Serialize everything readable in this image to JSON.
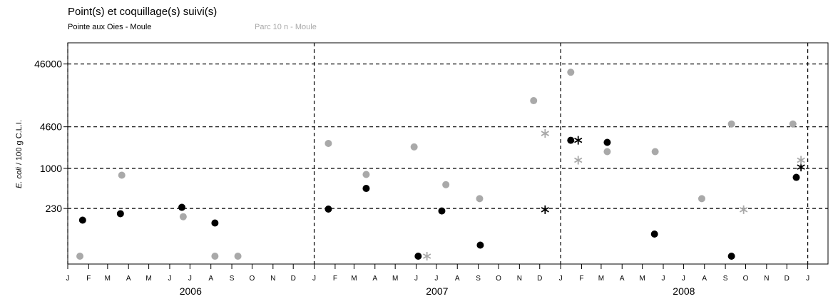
{
  "chart_data": {
    "type": "scatter",
    "title": "Point(s) et coquillage(s) suivi(s)",
    "ylabel": "E. coli / 100 g C.L.I.",
    "ylabel_italic": "E. coli",
    "ylabel_rest": " / 100 g C.L.I.",
    "y_scale": "log",
    "ylim": [
      30,
      100000
    ],
    "y_ticks": [
      230,
      1000,
      4600,
      46000
    ],
    "x_range": [
      "2006-01-01",
      "2009-01-31"
    ],
    "x_year_lines": [
      "2006-01-01",
      "2007-01-01",
      "2008-01-01",
      "2009-01-01"
    ],
    "month_labels": [
      "J",
      "F",
      "M",
      "A",
      "M",
      "J",
      "J",
      "A",
      "S",
      "O",
      "N",
      "D",
      "J",
      "F",
      "M",
      "A",
      "M",
      "J",
      "J",
      "A",
      "S",
      "O",
      "N",
      "D",
      "J",
      "F",
      "M",
      "A",
      "M",
      "J",
      "J",
      "A",
      "S",
      "O",
      "N",
      "D",
      "J"
    ],
    "year_labels": [
      "2006",
      "2007",
      "2008"
    ],
    "grid": "dashed at thresholds and year starts",
    "legend_placement": "top-left",
    "series": [
      {
        "name": "Pointe aux Oies - Moule",
        "color": "#000000",
        "points": [
          {
            "x": "2006-01-23",
            "y": 150
          },
          {
            "x": "2006-03-20",
            "y": 190
          },
          {
            "x": "2006-06-19",
            "y": 240
          },
          {
            "x": "2006-08-07",
            "y": 135
          },
          {
            "x": "2007-01-22",
            "y": 225
          },
          {
            "x": "2007-03-19",
            "y": 480
          },
          {
            "x": "2007-06-04",
            "y": 40
          },
          {
            "x": "2007-07-09",
            "y": 210
          },
          {
            "x": "2007-09-04",
            "y": 60
          },
          {
            "x": "2008-01-16",
            "y": 2800
          },
          {
            "x": "2008-03-10",
            "y": 2600
          },
          {
            "x": "2008-05-19",
            "y": 90
          },
          {
            "x": "2008-09-10",
            "y": 40
          },
          {
            "x": "2008-12-15",
            "y": 720
          }
        ],
        "stars": [
          {
            "x": "2007-12-09",
            "y": 220
          },
          {
            "x": "2008-01-27",
            "y": 2800
          },
          {
            "x": "2008-12-22",
            "y": 1050
          }
        ]
      },
      {
        "name": "Parc 10 n - Moule",
        "color": "#a9a9a9",
        "points": [
          {
            "x": "2006-01-19",
            "y": 40
          },
          {
            "x": "2006-03-22",
            "y": 780
          },
          {
            "x": "2006-06-21",
            "y": 170
          },
          {
            "x": "2006-08-07",
            "y": 40
          },
          {
            "x": "2006-09-10",
            "y": 40
          },
          {
            "x": "2007-01-22",
            "y": 2500
          },
          {
            "x": "2007-03-19",
            "y": 800
          },
          {
            "x": "2007-05-29",
            "y": 2200
          },
          {
            "x": "2007-07-15",
            "y": 550
          },
          {
            "x": "2007-09-03",
            "y": 330
          },
          {
            "x": "2007-11-22",
            "y": 12000
          },
          {
            "x": "2008-01-16",
            "y": 34000
          },
          {
            "x": "2008-03-10",
            "y": 1850
          },
          {
            "x": "2008-05-20",
            "y": 1850
          },
          {
            "x": "2008-07-28",
            "y": 330
          },
          {
            "x": "2008-09-10",
            "y": 5100
          },
          {
            "x": "2008-12-10",
            "y": 5100
          }
        ],
        "stars": [
          {
            "x": "2007-06-17",
            "y": 40
          },
          {
            "x": "2007-12-09",
            "y": 3600
          },
          {
            "x": "2008-01-27",
            "y": 1350
          },
          {
            "x": "2008-09-28",
            "y": 220
          },
          {
            "x": "2008-12-22",
            "y": 1350
          }
        ]
      }
    ]
  }
}
